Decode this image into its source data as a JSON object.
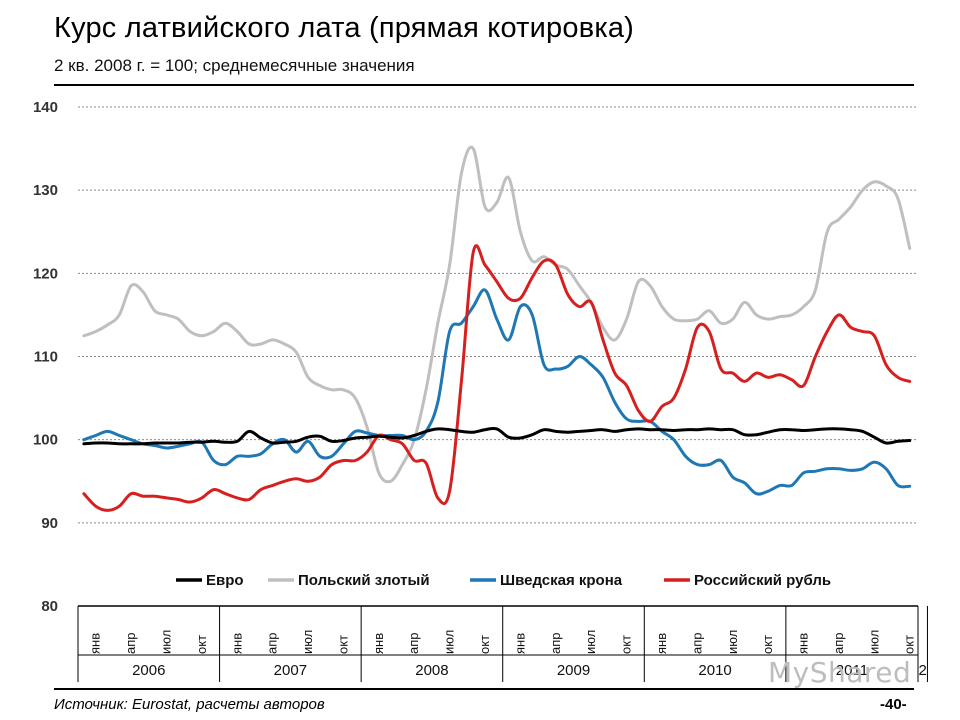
{
  "header": {
    "title": "Курс латвийского лата (прямая котировка)",
    "subtitle": "2 кв. 2008 г. = 100; среднемесячные значения"
  },
  "footer": {
    "source": "Источник: Eurostat, расчеты авторов",
    "page_number": "-40-",
    "watermark": "MyShared"
  },
  "colors": {
    "euro": "#000000",
    "pln": "#bfbfbf",
    "sek": "#1f77b4",
    "rub": "#d62020",
    "grid": "#8a8a8a"
  },
  "chart_data": {
    "type": "line",
    "title": "Курс латвийского лата (прямая котировка)",
    "ylim": [
      80,
      140
    ],
    "yticks": [
      80,
      90,
      100,
      110,
      120,
      130,
      140
    ],
    "month_labels": [
      "янв",
      "апр",
      "июл",
      "окт"
    ],
    "years": [
      "2006",
      "2007",
      "2008",
      "2009",
      "2010",
      "2011",
      "2"
    ],
    "grid": true,
    "legend_position": "lower-center",
    "series": [
      {
        "name": "Евро",
        "color_key": "euro",
        "values": [
          99.5,
          99.6,
          99.6,
          99.5,
          99.5,
          99.5,
          99.6,
          99.6,
          99.6,
          99.7,
          99.7,
          99.8,
          99.7,
          99.8,
          101.0,
          100.2,
          99.6,
          99.7,
          99.8,
          100.3,
          100.4,
          99.8,
          99.9,
          100.2,
          100.3,
          100.4,
          100.3,
          100.2,
          100.5,
          101.0,
          101.3,
          101.2,
          101.0,
          100.9,
          101.2,
          101.3,
          100.3,
          100.2,
          100.6,
          101.2,
          101.0,
          100.9,
          101.0,
          101.1,
          101.2,
          101.0,
          101.2,
          101.3,
          101.2,
          101.2,
          101.1,
          101.2,
          101.2,
          101.3,
          101.2,
          101.2,
          100.6,
          100.6,
          100.9,
          101.2,
          101.2,
          101.1,
          101.2,
          101.3,
          101.3,
          101.2,
          101.0,
          100.3,
          99.6,
          99.8,
          99.9
        ]
      },
      {
        "name": "Польский злотый",
        "color_key": "pln",
        "values": [
          112.5,
          113.0,
          113.8,
          115.0,
          118.5,
          117.8,
          115.5,
          115.0,
          114.5,
          113.0,
          112.5,
          113.0,
          114.0,
          113.0,
          111.5,
          111.5,
          112.0,
          111.5,
          110.5,
          107.5,
          106.5,
          106.0,
          106.0,
          105.0,
          101.5,
          96.0,
          95.0,
          97.0,
          100.0,
          106.0,
          114.0,
          121.0,
          132.0,
          135.0,
          128.0,
          128.5,
          131.5,
          125.0,
          121.5,
          122.0,
          121.0,
          120.5,
          118.5,
          116.5,
          113.5,
          112.0,
          114.5,
          119.0,
          118.5,
          116.0,
          114.5,
          114.3,
          114.5,
          115.5,
          114.0,
          114.5,
          116.5,
          115.0,
          114.5,
          114.8,
          115.0,
          116.0,
          118.0,
          125.0,
          126.5,
          128.0,
          130.0,
          131.0,
          130.5,
          129.0,
          123.0
        ]
      },
      {
        "name": "Шведская крона",
        "color_key": "sek",
        "values": [
          100.0,
          100.5,
          101.0,
          100.5,
          100.0,
          99.5,
          99.3,
          99.0,
          99.2,
          99.5,
          99.7,
          97.5,
          97.0,
          98.0,
          98.0,
          98.3,
          99.5,
          100.0,
          98.5,
          99.8,
          98.0,
          98.0,
          99.5,
          101.0,
          100.8,
          100.5,
          100.5,
          100.5,
          100.0,
          101.0,
          104.5,
          113.0,
          114.0,
          116.0,
          118.0,
          114.5,
          112.0,
          116.0,
          115.0,
          109.0,
          108.5,
          108.8,
          110.0,
          109.0,
          107.5,
          104.5,
          102.5,
          102.2,
          102.2,
          101.0,
          100.0,
          98.0,
          97.0,
          97.0,
          97.5,
          95.5,
          94.8,
          93.5,
          93.8,
          94.5,
          94.5,
          96.0,
          96.2,
          96.5,
          96.5,
          96.3,
          96.5,
          97.3,
          96.5,
          94.5,
          94.4
        ]
      },
      {
        "name": "Российский рубль",
        "color_key": "rub",
        "values": [
          93.5,
          92.0,
          91.5,
          92.0,
          93.5,
          93.2,
          93.2,
          93.0,
          92.8,
          92.5,
          93.0,
          94.0,
          93.5,
          93.0,
          92.8,
          94.0,
          94.5,
          95.0,
          95.3,
          95.0,
          95.5,
          97.0,
          97.5,
          97.5,
          98.5,
          100.5,
          100.0,
          99.5,
          97.5,
          97.2,
          93.0,
          93.8,
          107.0,
          122.5,
          121.0,
          119.0,
          117.0,
          117.0,
          119.5,
          121.5,
          121.0,
          117.5,
          116.0,
          116.5,
          112.0,
          108.0,
          106.5,
          103.5,
          102.2,
          104.0,
          105.0,
          108.5,
          113.5,
          113.0,
          108.5,
          108.0,
          107.0,
          108.0,
          107.5,
          107.8,
          107.2,
          106.5,
          110.0,
          113.0,
          115.0,
          113.5,
          113.0,
          112.5,
          109.0,
          107.5,
          107.0
        ]
      }
    ]
  }
}
